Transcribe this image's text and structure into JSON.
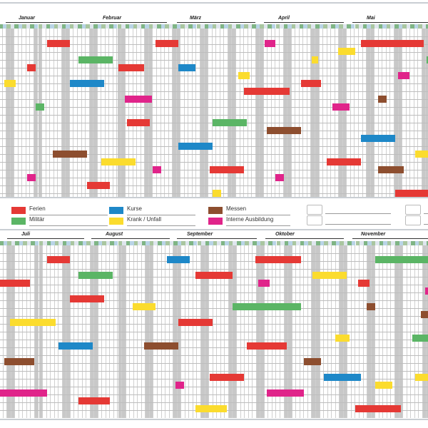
{
  "planner": {
    "top_months": [
      "Januar",
      "Februar",
      "März",
      "April",
      "Mai"
    ],
    "bottom_months": [
      "Juli",
      "August",
      "September",
      "Oktober",
      "November"
    ]
  },
  "legend": {
    "items": [
      {
        "label": "Ferien",
        "color": "#e53935"
      },
      {
        "label": "Militär",
        "color": "#5bb565"
      },
      {
        "label": "Kurse",
        "color": "#1e88c8"
      },
      {
        "label": "Krank / Unfall",
        "color": "#fbdc2e"
      },
      {
        "label": "Messen",
        "color": "#8d4e2f"
      },
      {
        "label": "Interne Ausbildung",
        "color": "#e0248a"
      }
    ]
  },
  "colors": {
    "red": "#e53935",
    "green": "#5bb565",
    "blue": "#1e88c8",
    "yellow": "#fbdc2e",
    "brown": "#8d4e2f",
    "magenta": "#e0248a"
  }
}
